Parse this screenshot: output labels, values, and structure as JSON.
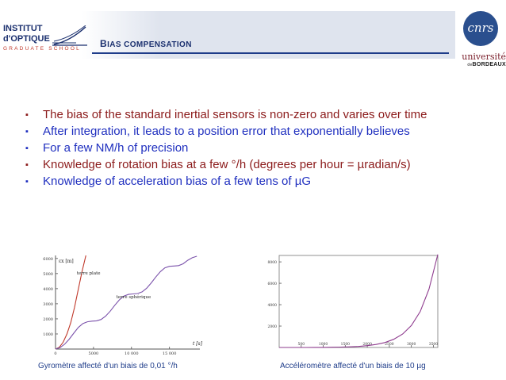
{
  "header": {
    "logo_left": {
      "line1": "INSTITUT",
      "line2": "d'OPTIQUE",
      "line3": "GRADUATE SCHOOL"
    },
    "title_first": "B",
    "title_rest": "IAS COMPENSATION",
    "logo_right_top": "cnrs",
    "logo_right_bottom_1": "université",
    "logo_right_bottom_de": "de",
    "logo_right_bottom_2": "BORDEAUX"
  },
  "bullets": [
    {
      "text": "The bias of the standard inertial sensors is non-zero and varies over time",
      "color": "#8b1a1a"
    },
    {
      "text": "After integration, it leads to a position error that exponentially believes",
      "color": "#1f2fbf"
    },
    {
      "text": "For a few NM/h of precision",
      "color": "#1f2fbf"
    },
    {
      "text": "Knowledge of rotation bias at a few °/h (degrees per hour = µradian/s)",
      "color": "#8b1a1a"
    },
    {
      "text": "Knowledge of acceleration bias of a few tens of µG",
      "color": "#1f2fbf"
    }
  ],
  "bullet_marker": "▪",
  "captions": {
    "left": "Gyromètre affecté d'un biais de 0,01 °/h",
    "right": "Accéléromètre affecté d'un biais de 10 µg"
  },
  "chart_data": [
    {
      "type": "line",
      "xlabel": "t [s]",
      "ylabel": "εx [m]",
      "x_ticks": [
        "0",
        "5000",
        "10 000",
        "15 000"
      ],
      "y_ticks": [
        "1000",
        "2000",
        "3000",
        "4000",
        "5000",
        "6000"
      ],
      "xlim": [
        0,
        19000
      ],
      "ylim": [
        0,
        6200
      ],
      "series": [
        {
          "name": "terre plate",
          "color": "#c0392b",
          "x": [
            0,
            500,
            1000,
            1500,
            2000,
            2500,
            3000,
            3500,
            4000
          ],
          "values": [
            0,
            120,
            450,
            1000,
            1750,
            2750,
            3950,
            5150,
            6200
          ]
        },
        {
          "name": "terre sphérique",
          "color": "#7b52ab",
          "x": [
            0,
            600,
            1200,
            1800,
            2400,
            3000,
            3600,
            4200,
            4800,
            5400,
            6000,
            6600,
            7200,
            7800,
            8400,
            9000,
            9600,
            10200,
            10800,
            11400,
            12000,
            12600,
            13200,
            13800,
            14400,
            15000,
            15600,
            16200,
            16800,
            17400,
            18000,
            18600
          ],
          "values": [
            0,
            100,
            320,
            650,
            1050,
            1430,
            1690,
            1810,
            1850,
            1870,
            1960,
            2180,
            2510,
            2900,
            3260,
            3510,
            3620,
            3650,
            3680,
            3790,
            4030,
            4380,
            4770,
            5130,
            5380,
            5480,
            5500,
            5530,
            5650,
            5880,
            6050,
            6150
          ]
        }
      ]
    },
    {
      "type": "line",
      "x_ticks": [
        "500",
        "1000",
        "1500",
        "2000",
        "2500",
        "3000",
        "3500"
      ],
      "y_ticks": [
        "2000",
        "4000",
        "6000",
        "8000"
      ],
      "xlim": [
        0,
        3600
      ],
      "ylim": [
        0,
        8600
      ],
      "series": [
        {
          "color": "#8e3b8e",
          "x": [
            0,
            200,
            400,
            600,
            800,
            1000,
            1200,
            1400,
            1600,
            1800,
            2000,
            2200,
            2400,
            2600,
            2800,
            3000,
            3200,
            3400,
            3600
          ],
          "values": [
            0,
            0,
            0,
            0,
            5,
            10,
            20,
            35,
            60,
            100,
            170,
            280,
            460,
            760,
            1250,
            2050,
            3350,
            5450,
            8700
          ]
        }
      ]
    }
  ]
}
